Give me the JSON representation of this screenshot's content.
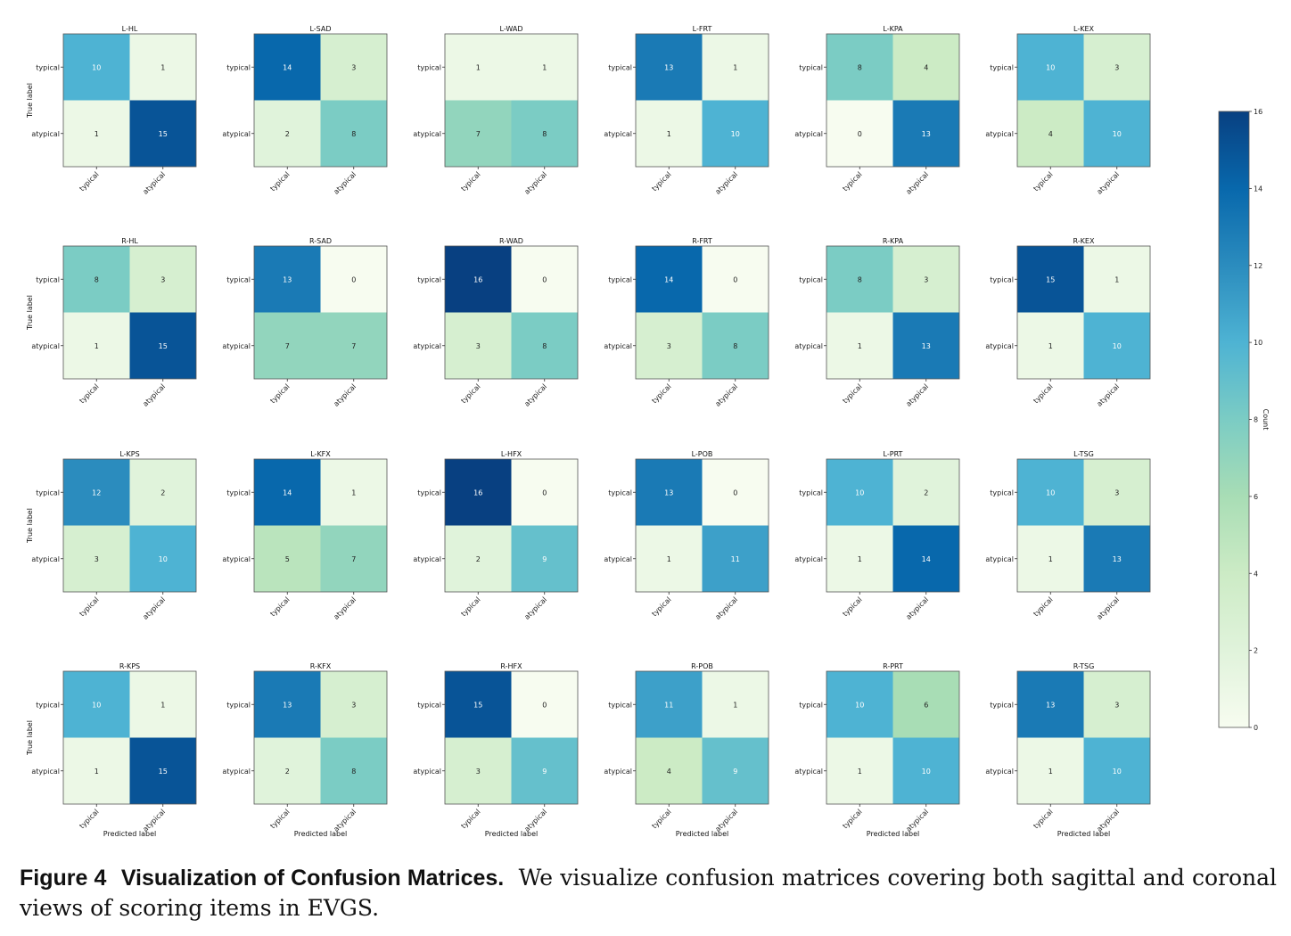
{
  "chart_data": {
    "type": "heatmap",
    "x_tick_labels": [
      "typical",
      "atypical"
    ],
    "y_tick_labels": [
      "typical",
      "atypical"
    ],
    "xlabel": "Predicted label",
    "ylabel": "True label",
    "colormap": "GnBu",
    "colorbar": {
      "label": "Count",
      "range": [
        0,
        16
      ],
      "ticks": [
        "0",
        "2",
        "4",
        "6",
        "8",
        "10",
        "12",
        "14",
        "16"
      ]
    },
    "matrices": [
      {
        "title": "L-HL",
        "values": [
          [
            10,
            1
          ],
          [
            1,
            15
          ]
        ]
      },
      {
        "title": "L-SAD",
        "values": [
          [
            14,
            3
          ],
          [
            2,
            8
          ]
        ]
      },
      {
        "title": "L-WAD",
        "values": [
          [
            1,
            1
          ],
          [
            7,
            8
          ]
        ]
      },
      {
        "title": "L-FRT",
        "values": [
          [
            13,
            1
          ],
          [
            1,
            10
          ]
        ]
      },
      {
        "title": "L-KPA",
        "values": [
          [
            8,
            4
          ],
          [
            0,
            13
          ]
        ]
      },
      {
        "title": "L-KEX",
        "values": [
          [
            10,
            3
          ],
          [
            4,
            10
          ]
        ]
      },
      {
        "title": "R-HL",
        "values": [
          [
            8,
            3
          ],
          [
            1,
            15
          ]
        ]
      },
      {
        "title": "R-SAD",
        "values": [
          [
            13,
            0
          ],
          [
            7,
            7
          ]
        ]
      },
      {
        "title": "R-WAD",
        "values": [
          [
            16,
            0
          ],
          [
            3,
            8
          ]
        ]
      },
      {
        "title": "R-FRT",
        "values": [
          [
            14,
            0
          ],
          [
            3,
            8
          ]
        ]
      },
      {
        "title": "R-KPA",
        "values": [
          [
            8,
            3
          ],
          [
            1,
            13
          ]
        ]
      },
      {
        "title": "R-KEX",
        "values": [
          [
            15,
            1
          ],
          [
            1,
            10
          ]
        ]
      },
      {
        "title": "L-KPS",
        "values": [
          [
            12,
            2
          ],
          [
            3,
            10
          ]
        ]
      },
      {
        "title": "L-KFX",
        "values": [
          [
            14,
            1
          ],
          [
            5,
            7
          ]
        ]
      },
      {
        "title": "L-HFX",
        "values": [
          [
            16,
            0
          ],
          [
            2,
            9
          ]
        ]
      },
      {
        "title": "L-POB",
        "values": [
          [
            13,
            0
          ],
          [
            1,
            11
          ]
        ]
      },
      {
        "title": "L-PRT",
        "values": [
          [
            10,
            2
          ],
          [
            1,
            14
          ]
        ]
      },
      {
        "title": "L-TSG",
        "values": [
          [
            10,
            3
          ],
          [
            1,
            13
          ]
        ]
      },
      {
        "title": "R-KPS",
        "values": [
          [
            10,
            1
          ],
          [
            1,
            15
          ]
        ]
      },
      {
        "title": "R-KFX",
        "values": [
          [
            13,
            3
          ],
          [
            2,
            8
          ]
        ]
      },
      {
        "title": "R-HFX",
        "values": [
          [
            15,
            0
          ],
          [
            3,
            9
          ]
        ]
      },
      {
        "title": "R-POB",
        "values": [
          [
            11,
            1
          ],
          [
            4,
            9
          ]
        ]
      },
      {
        "title": "R-PRT",
        "values": [
          [
            10,
            6
          ],
          [
            1,
            10
          ]
        ]
      },
      {
        "title": "R-TSG",
        "values": [
          [
            13,
            3
          ],
          [
            1,
            10
          ]
        ]
      }
    ]
  },
  "caption": {
    "label": "Figure 4",
    "title": "Visualization of Confusion Matrices.",
    "text": "We visualize confusion matrices covering both sagittal and coronal views of scoring items in EVGS."
  }
}
